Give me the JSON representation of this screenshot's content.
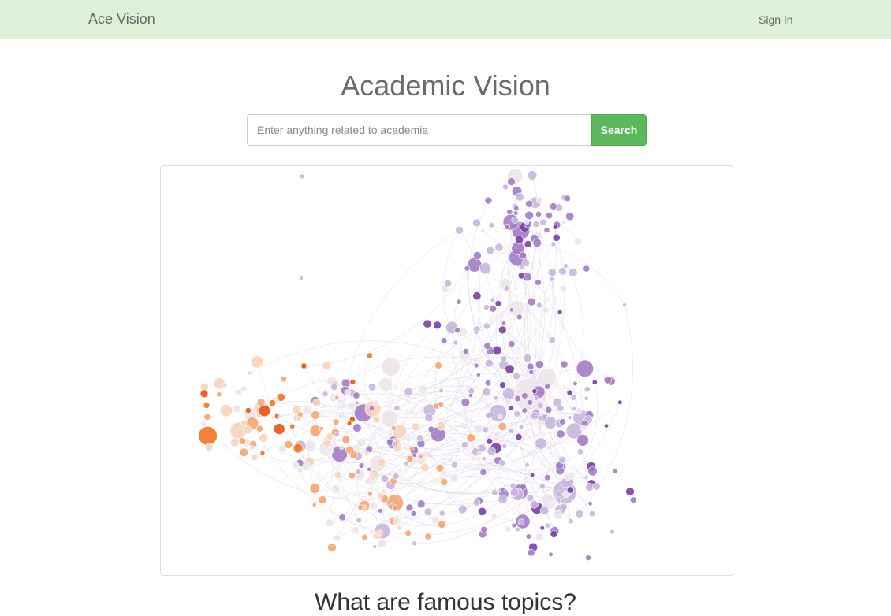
{
  "navbar": {
    "brand": "Ace Vision",
    "sign_in": "Sign In"
  },
  "hero": {
    "title": "Academic Vision"
  },
  "search": {
    "placeholder": "Enter anything related to academia",
    "button_label": "Search"
  },
  "graph": {
    "palette": {
      "purple_dark": "#7b3fa8",
      "purple_mid": "#a27cc4",
      "purple_light": "#c8b6dc",
      "neutral": "#ece4ea",
      "peach_light": "#f7d4bd",
      "orange_mid": "#f5a571",
      "orange_dark": "#f0761f",
      "red_orange": "#e8540f",
      "edge": "#d6c8e0"
    }
  },
  "sections": {
    "famous_topics_heading": "What are famous topics?"
  }
}
